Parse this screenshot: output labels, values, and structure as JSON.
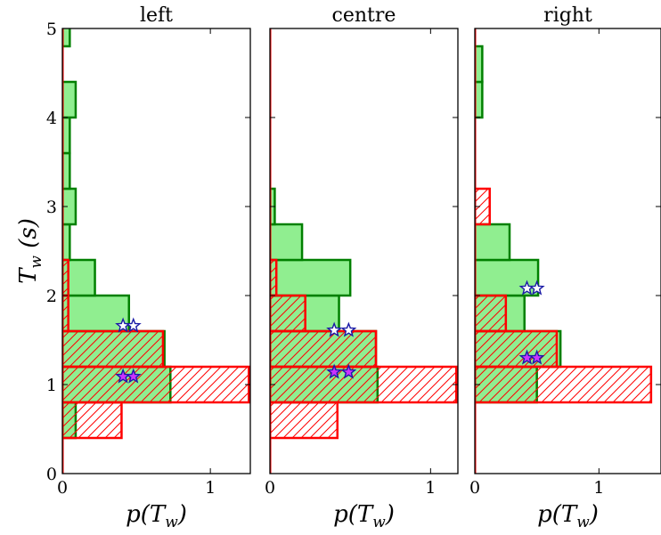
{
  "chart_data": [
    {
      "type": "bar",
      "orientation": "horizontal",
      "title": "left",
      "xlabel": "p(T_w)",
      "ylabel": "T_w (s)",
      "xlim": [
        0,
        1.27
      ],
      "ylim": [
        0,
        5
      ],
      "xticks": [
        "0",
        "1"
      ],
      "yticks": [
        "0",
        "1",
        "2",
        "3",
        "4",
        "5"
      ],
      "series": [
        {
          "color": "#90ee90",
          "edge": "#008000",
          "bins": [
            {
              "y0": 0.4,
              "y1": 0.8,
              "value": 0.09
            },
            {
              "y0": 0.8,
              "y1": 1.2,
              "value": 0.73
            },
            {
              "y0": 1.2,
              "y1": 1.6,
              "value": 0.69
            },
            {
              "y0": 1.6,
              "y1": 2.0,
              "value": 0.45
            },
            {
              "y0": 2.0,
              "y1": 2.4,
              "value": 0.22
            },
            {
              "y0": 2.4,
              "y1": 2.8,
              "value": 0.05
            },
            {
              "y0": 2.8,
              "y1": 3.2,
              "value": 0.09
            },
            {
              "y0": 3.2,
              "y1": 3.6,
              "value": 0.05
            },
            {
              "y0": 3.6,
              "y1": 4.0,
              "value": 0.05
            },
            {
              "y0": 4.0,
              "y1": 4.4,
              "value": 0.09
            },
            {
              "y0": 4.4,
              "y1": 4.8,
              "value": 0.0
            },
            {
              "y0": 4.8,
              "y1": 5.2,
              "value": 0.05
            }
          ]
        },
        {
          "color": "#ff0000",
          "hatch": "diagonal",
          "edge": "#ff0000",
          "bins": [
            {
              "y0": 0.4,
              "y1": 0.8,
              "value": 0.4
            },
            {
              "y0": 0.8,
              "y1": 1.2,
              "value": 1.26
            },
            {
              "y0": 1.2,
              "y1": 1.6,
              "value": 0.68
            },
            {
              "y0": 1.6,
              "y1": 2.0,
              "value": 0.04
            },
            {
              "y0": 2.0,
              "y1": 2.4,
              "value": 0.04
            }
          ]
        }
      ],
      "markers": [
        {
          "kind": "hollow",
          "x": 0.41,
          "y": 1.66
        },
        {
          "kind": "hollow",
          "x": 0.48,
          "y": 1.66
        },
        {
          "kind": "filled",
          "x": 0.41,
          "y": 1.09
        },
        {
          "kind": "filled",
          "x": 0.48,
          "y": 1.09
        }
      ]
    },
    {
      "type": "bar",
      "orientation": "horizontal",
      "title": "centre",
      "xlabel": "p(T_w)",
      "xlim": [
        0,
        1.17
      ],
      "ylim": [
        0,
        5
      ],
      "xticks": [
        "0",
        "1"
      ],
      "series": [
        {
          "color": "#90ee90",
          "edge": "#008000",
          "bins": [
            {
              "y0": 0.8,
              "y1": 1.2,
              "value": 0.67
            },
            {
              "y0": 1.2,
              "y1": 1.6,
              "value": 0.66
            },
            {
              "y0": 1.6,
              "y1": 2.0,
              "value": 0.43
            },
            {
              "y0": 2.0,
              "y1": 2.4,
              "value": 0.5
            },
            {
              "y0": 2.4,
              "y1": 2.8,
              "value": 0.2
            },
            {
              "y0": 2.8,
              "y1": 3.2,
              "value": 0.03
            }
          ]
        },
        {
          "color": "#ff0000",
          "hatch": "diagonal",
          "edge": "#ff0000",
          "bins": [
            {
              "y0": 0.4,
              "y1": 0.8,
              "value": 0.42
            },
            {
              "y0": 0.8,
              "y1": 1.2,
              "value": 1.16
            },
            {
              "y0": 1.2,
              "y1": 1.6,
              "value": 0.66
            },
            {
              "y0": 1.6,
              "y1": 2.0,
              "value": 0.22
            },
            {
              "y0": 2.0,
              "y1": 2.4,
              "value": 0.04
            }
          ]
        }
      ],
      "markers": [
        {
          "kind": "hollow",
          "x": 0.4,
          "y": 1.61
        },
        {
          "kind": "hollow",
          "x": 0.49,
          "y": 1.61
        },
        {
          "kind": "filled",
          "x": 0.4,
          "y": 1.14
        },
        {
          "kind": "filled",
          "x": 0.49,
          "y": 1.14
        }
      ]
    },
    {
      "type": "bar",
      "orientation": "horizontal",
      "title": "right",
      "xlabel": "p(T_w)",
      "xlim": [
        0,
        1.5
      ],
      "ylim": [
        0,
        5
      ],
      "xticks": [
        "0",
        "1"
      ],
      "series": [
        {
          "color": "#90ee90",
          "edge": "#008000",
          "bins": [
            {
              "y0": 0.8,
              "y1": 1.2,
              "value": 0.5
            },
            {
              "y0": 1.2,
              "y1": 1.6,
              "value": 0.69
            },
            {
              "y0": 1.6,
              "y1": 2.0,
              "value": 0.4
            },
            {
              "y0": 2.0,
              "y1": 2.4,
              "value": 0.51
            },
            {
              "y0": 2.4,
              "y1": 2.8,
              "value": 0.28
            },
            {
              "y0": 2.8,
              "y1": 3.2,
              "value": 0.0
            },
            {
              "y0": 3.2,
              "y1": 3.6,
              "value": 0.0
            },
            {
              "y0": 3.6,
              "y1": 4.0,
              "value": 0.0
            },
            {
              "y0": 4.0,
              "y1": 4.4,
              "value": 0.06
            },
            {
              "y0": 4.4,
              "y1": 4.8,
              "value": 0.06
            }
          ]
        },
        {
          "color": "#ff0000",
          "hatch": "diagonal",
          "edge": "#ff0000",
          "bins": [
            {
              "y0": 0.8,
              "y1": 1.2,
              "value": 1.42
            },
            {
              "y0": 1.2,
              "y1": 1.6,
              "value": 0.66
            },
            {
              "y0": 1.6,
              "y1": 2.0,
              "value": 0.25
            },
            {
              "y0": 2.0,
              "y1": 2.4,
              "value": 0.0
            },
            {
              "y0": 2.4,
              "y1": 2.8,
              "value": 0.0
            },
            {
              "y0": 2.8,
              "y1": 3.2,
              "value": 0.12
            }
          ]
        }
      ],
      "markers": [
        {
          "kind": "hollow",
          "x": 0.42,
          "y": 2.08
        },
        {
          "kind": "hollow",
          "x": 0.5,
          "y": 2.08
        },
        {
          "kind": "filled",
          "x": 0.42,
          "y": 1.3
        },
        {
          "kind": "filled",
          "x": 0.5,
          "y": 1.3
        }
      ]
    }
  ]
}
